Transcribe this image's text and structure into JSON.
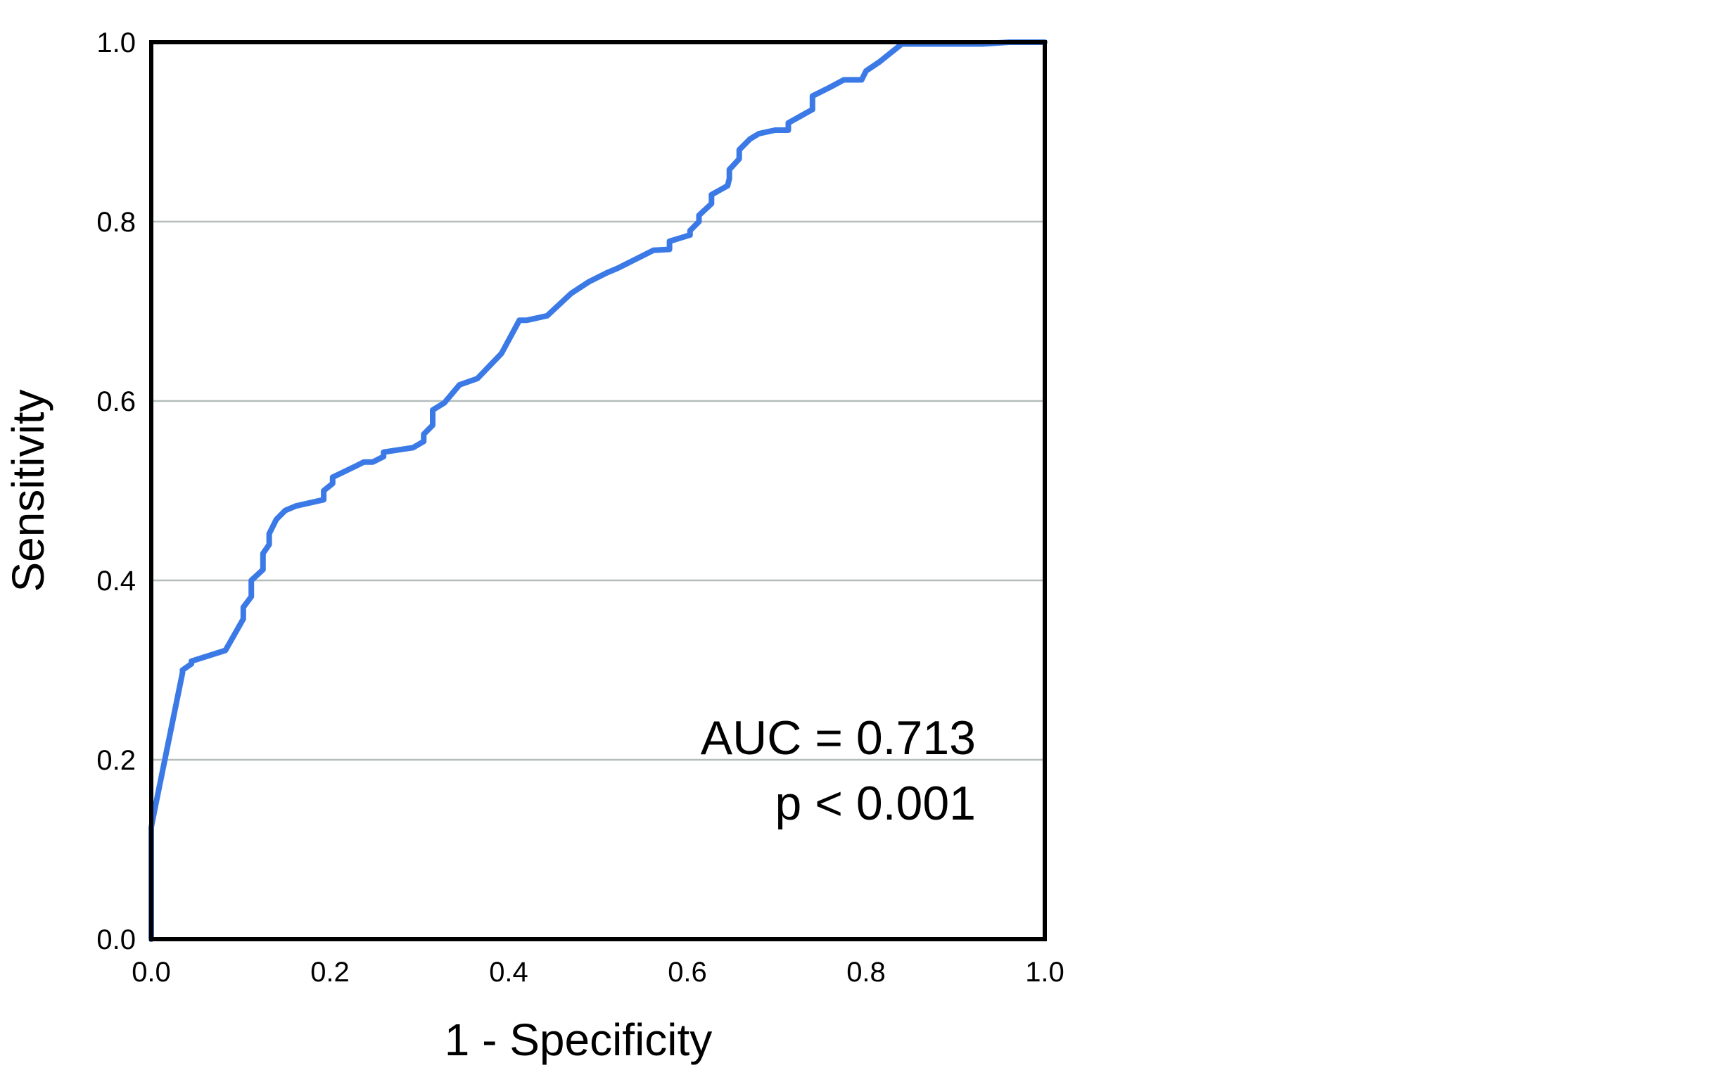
{
  "chart_data": {
    "type": "line",
    "title": "",
    "xlabel": "1 - Specificity",
    "ylabel": "Sensitivity",
    "xlim": [
      0,
      1
    ],
    "ylim": [
      0,
      1
    ],
    "x_ticks": [
      "0.0",
      "0.2",
      "0.4",
      "0.6",
      "0.8",
      "1.0"
    ],
    "y_ticks": [
      "0.0",
      "0.2",
      "0.4",
      "0.6",
      "0.8",
      "1.0"
    ],
    "grid": "horizontal",
    "annotations": [
      "AUC = 0.713",
      "p < 0.001"
    ],
    "colors": {
      "line": "#3b7ae6",
      "grid": "#b4bcbc",
      "frame": "#000000"
    },
    "series": [
      {
        "x": [
          0.0,
          0.0,
          0.005,
          0.035,
          0.035,
          0.045,
          0.045,
          0.083,
          0.103,
          0.103,
          0.112,
          0.112,
          0.125,
          0.125,
          0.132,
          0.132,
          0.14,
          0.15,
          0.162,
          0.193,
          0.193,
          0.203,
          0.203,
          0.23,
          0.238,
          0.248,
          0.26,
          0.26,
          0.293,
          0.305,
          0.305,
          0.315,
          0.315,
          0.328,
          0.345,
          0.365,
          0.392,
          0.412,
          0.42,
          0.443,
          0.47,
          0.49,
          0.51,
          0.522,
          0.562,
          0.58,
          0.58,
          0.603,
          0.603,
          0.613,
          0.613,
          0.627,
          0.627,
          0.645,
          0.647,
          0.647,
          0.658,
          0.658,
          0.67,
          0.68,
          0.698,
          0.713,
          0.713,
          0.74,
          0.74,
          0.76,
          0.775,
          0.795,
          0.8,
          0.815,
          0.84,
          0.855,
          0.93,
          0.96,
          1.0
        ],
        "y": [
          0.0,
          0.125,
          0.15,
          0.297,
          0.3,
          0.307,
          0.31,
          0.322,
          0.357,
          0.37,
          0.382,
          0.4,
          0.412,
          0.43,
          0.44,
          0.452,
          0.468,
          0.478,
          0.483,
          0.49,
          0.5,
          0.508,
          0.515,
          0.528,
          0.532,
          0.532,
          0.538,
          0.543,
          0.548,
          0.555,
          0.563,
          0.573,
          0.59,
          0.598,
          0.618,
          0.625,
          0.653,
          0.69,
          0.69,
          0.695,
          0.72,
          0.733,
          0.743,
          0.748,
          0.768,
          0.769,
          0.778,
          0.785,
          0.79,
          0.8,
          0.807,
          0.82,
          0.83,
          0.84,
          0.848,
          0.858,
          0.87,
          0.88,
          0.892,
          0.898,
          0.902,
          0.902,
          0.91,
          0.925,
          0.94,
          0.95,
          0.958,
          0.958,
          0.968,
          0.978,
          0.998,
          0.998,
          0.998,
          1.0,
          1.0
        ]
      }
    ]
  }
}
